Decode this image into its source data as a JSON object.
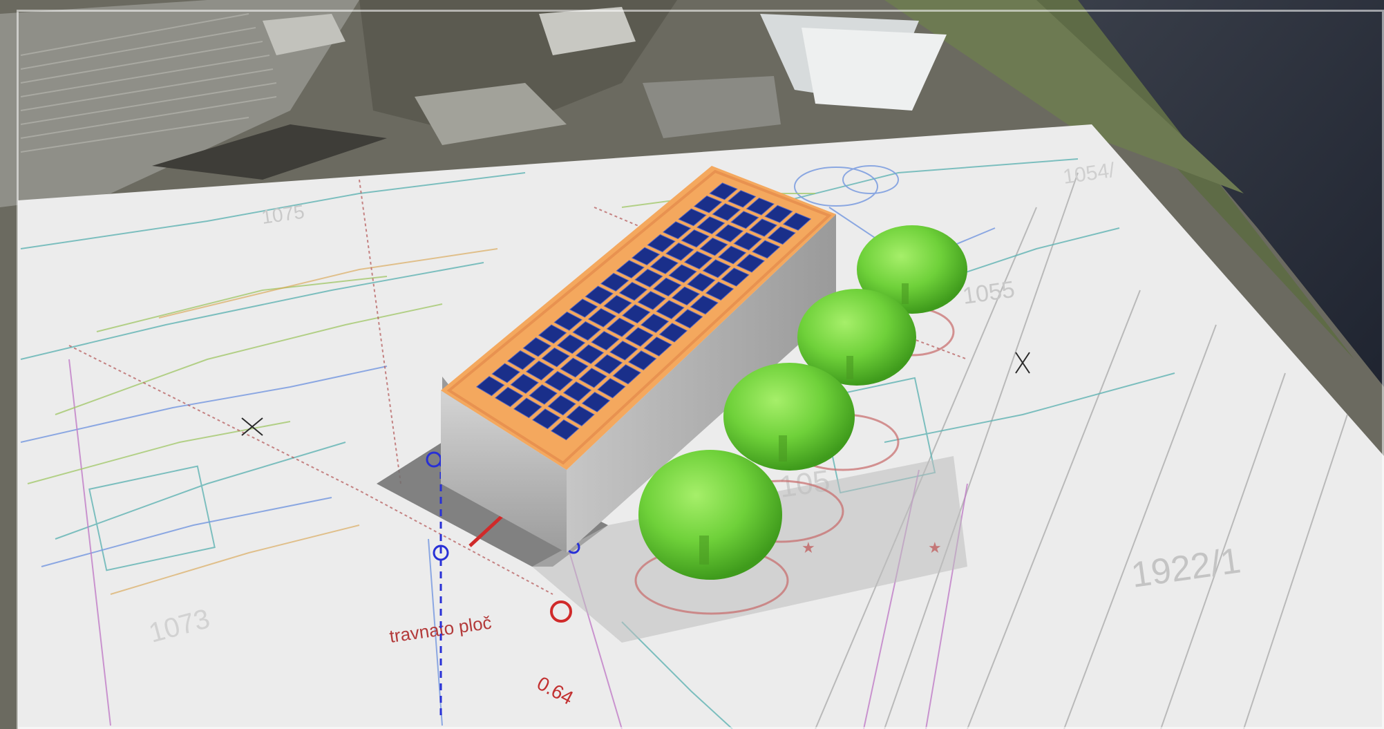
{
  "scene": {
    "type": "3d-site-viewer",
    "plan_labels": {
      "parcel_1075": "1075",
      "parcel_1054": "1054/",
      "parcel_1055": "1055",
      "parcel_1922": "1922/1",
      "parcel_105_lower": "105",
      "parcel_1073": "1073",
      "road_label": "travnato ploč",
      "dimension_064": "0.64"
    },
    "objects": {
      "building": "building-with-solar-roof",
      "trees": [
        "tree-1",
        "tree-2",
        "tree-3",
        "tree-4"
      ]
    },
    "colors": {
      "solar_panel": "#1a2f8a",
      "roof_edge": "#f4a85e",
      "tree": "#6fd13a",
      "wall": "#b8b8b8"
    }
  }
}
